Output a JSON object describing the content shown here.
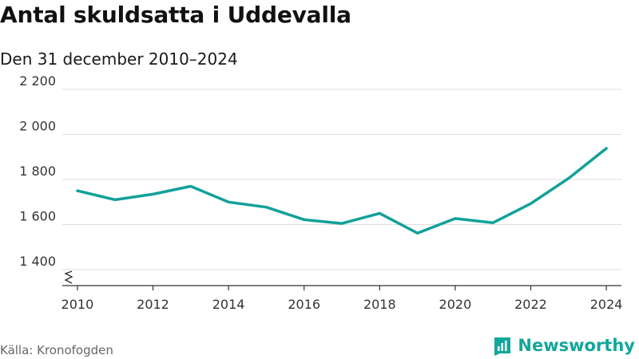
{
  "header": {
    "title": "Antal skuldsatta i Uddevalla",
    "subtitle": "Den 31 december 2010–2024"
  },
  "footer": {
    "source": "Källa: Kronofogden",
    "brand": "Newsworthy"
  },
  "colors": {
    "line": "#11a19a",
    "brand": "#11a79a",
    "grid": "#dddddd",
    "axis": "#333333",
    "text": "#333333"
  },
  "chart_data": {
    "type": "line",
    "title": "Antal skuldsatta i Uddevalla",
    "subtitle": "Den 31 december 2010–2024",
    "xlabel": "",
    "ylabel": "",
    "x": [
      2010,
      2011,
      2012,
      2013,
      2014,
      2015,
      2016,
      2017,
      2018,
      2019,
      2020,
      2021,
      2022,
      2023,
      2024
    ],
    "series": [
      {
        "name": "Antal skuldsatta",
        "values": [
          1750,
          1710,
          1735,
          1770,
          1700,
          1677,
          1622,
          1605,
          1650,
          1562,
          1627,
          1608,
          1693,
          1805,
          1938
        ]
      }
    ],
    "x_ticks": [
      2010,
      2012,
      2014,
      2016,
      2018,
      2020,
      2022,
      2024
    ],
    "x_tick_labels": [
      "2010",
      "2012",
      "2014",
      "2016",
      "2018",
      "2020",
      "2022",
      "2024"
    ],
    "y_ticks": [
      1400,
      1600,
      1800,
      2000,
      2200
    ],
    "y_tick_labels": [
      "1 400",
      "1 600",
      "1 800",
      "2 000",
      "2 200"
    ],
    "xlim": [
      2009.6,
      2024.4
    ],
    "ylim": [
      1400,
      2200
    ],
    "grid": true,
    "axis_break": true
  }
}
